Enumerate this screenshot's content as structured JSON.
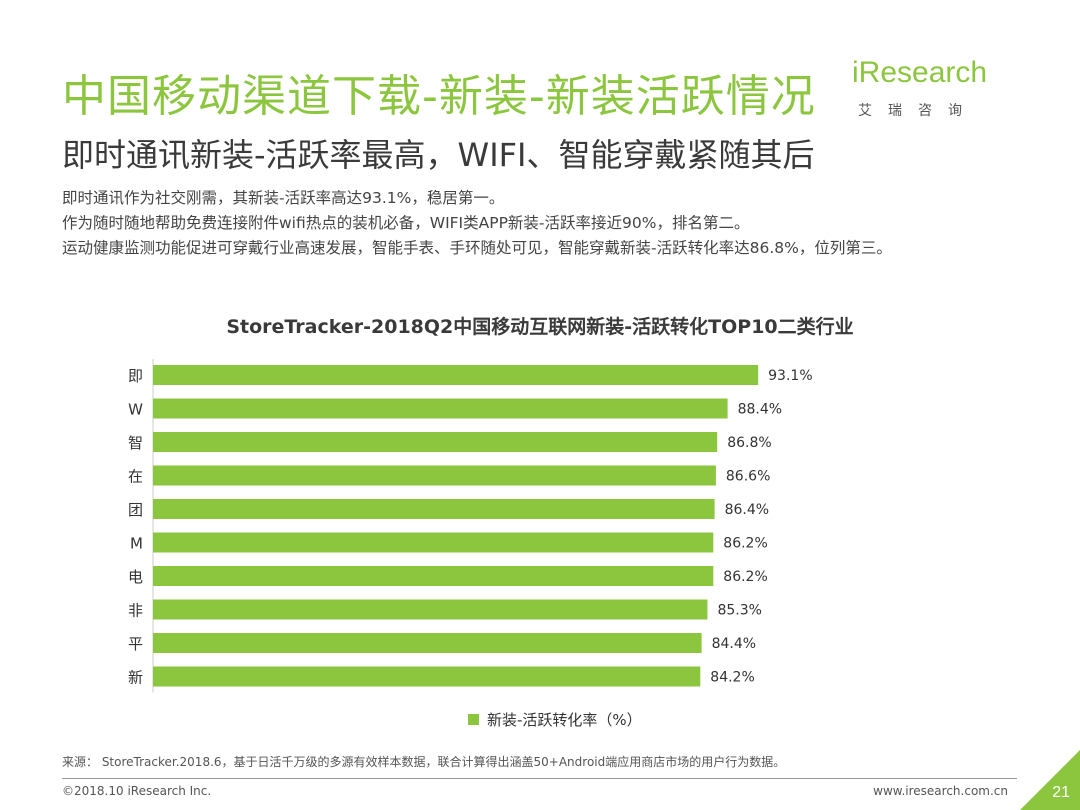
{
  "header": {
    "title": "中国移动渠道下载-新装-新装活跃情况",
    "subtitle": "即时通讯新装-活跃率最高，WIFI、智能穿戴紧随其后"
  },
  "logo": {
    "text": "iResearch",
    "subtext": "艾瑞咨询"
  },
  "bullets": [
    "即时通讯作为社交刚需，其新装-活跃率高达93.1%，稳居第一。",
    "作为随时随地帮助免费连接附件wifi热点的装机必备，WIFI类APP新装-活跃率接近90%，排名第二。",
    "运动健康监测功能促进可穿戴行业高速发展，智能手表、手环随处可见，智能穿戴新装-活跃转化率达86.8%，位列第三。"
  ],
  "chart_data": {
    "type": "bar",
    "orientation": "horizontal",
    "title": "StoreTracker-2018Q2中国移动互联网新装-活跃转化TOP10二类行业",
    "categories": [
      "即",
      "W",
      "智",
      "在",
      "团",
      "M",
      "电",
      "非",
      "平",
      "新"
    ],
    "series": [
      {
        "name": "新装-活跃转化率（%）",
        "values": [
          93.1,
          88.4,
          86.8,
          86.6,
          86.4,
          86.2,
          86.2,
          85.3,
          84.4,
          84.2
        ],
        "labels": [
          "93.1%",
          "88.4%",
          "86.8%",
          "86.6%",
          "86.4%",
          "86.2%",
          "86.2%",
          "85.3%",
          "84.4%",
          "84.2%"
        ]
      }
    ],
    "xlim": [
      0,
      100
    ],
    "grid": false,
    "legend": "bottom-center",
    "bar_color": "#8cc63f"
  },
  "legend_label": "新装-活跃转化率（%）",
  "footer": {
    "source": "来源： StoreTracker.2018.6，基于日活千万级的多源有效样本数据，联合计算得出涵盖50+Android端应用商店市场的用户行为数据。",
    "copyright": "©2018.10 iResearch Inc.",
    "website": "www.iresearch.com.cn",
    "page_number": "21"
  },
  "colors": {
    "accent": "#8cc63f",
    "text": "#333333"
  }
}
